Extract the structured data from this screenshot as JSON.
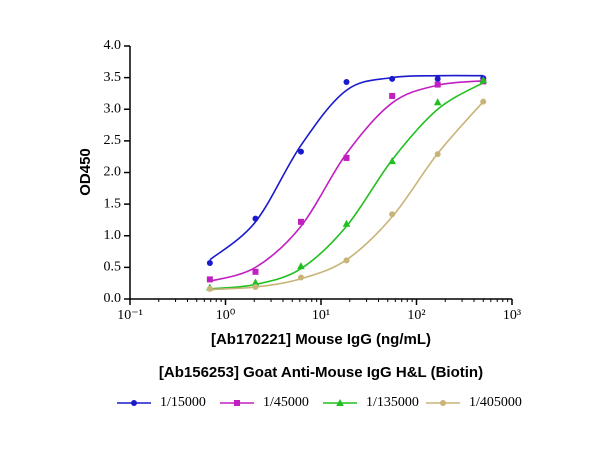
{
  "chart_data": {
    "type": "scatter",
    "xlabel": "[Ab170221] Mouse IgG (ng/mL)",
    "subtitle": "[Ab156253] Goat Anti-Mouse IgG H&L (Biotin)",
    "ylabel": "OD450",
    "xscale": "log",
    "xlim": [
      0.1,
      1000
    ],
    "xticks": [
      {
        "value": 0.1,
        "label": "10⁻¹"
      },
      {
        "value": 1,
        "label": "10⁰"
      },
      {
        "value": 10,
        "label": "10¹"
      },
      {
        "value": 100,
        "label": "10²"
      },
      {
        "value": 1000,
        "label": "10³"
      }
    ],
    "ylim": [
      0,
      4
    ],
    "yticks": [
      {
        "value": 0,
        "label": "0.0"
      },
      {
        "value": 0.5,
        "label": "0.5"
      },
      {
        "value": 1,
        "label": "1.0"
      },
      {
        "value": 1.5,
        "label": "1.5"
      },
      {
        "value": 2,
        "label": "2.0"
      },
      {
        "value": 2.5,
        "label": "2.5"
      },
      {
        "value": 3,
        "label": "3.0"
      },
      {
        "value": 3.5,
        "label": "3.5"
      },
      {
        "value": 4,
        "label": "4.0"
      }
    ],
    "legend": "bottom",
    "x": [
      0.686,
      2.06,
      6.17,
      18.5,
      55.6,
      166.7,
      500
    ],
    "series": [
      {
        "name": "1/15000",
        "color": "#1a1acc",
        "marker": "circle",
        "values": [
          0.57,
          1.27,
          2.33,
          3.43,
          3.48,
          3.48,
          3.49
        ],
        "fit_values": [
          0.62,
          1.22,
          2.43,
          3.3,
          3.5,
          3.53,
          3.53
        ]
      },
      {
        "name": "1/45000",
        "color": "#c020c0",
        "marker": "square",
        "values": [
          0.31,
          0.43,
          1.22,
          2.23,
          3.21,
          3.39,
          3.44
        ],
        "fit_values": [
          0.28,
          0.5,
          1.15,
          2.3,
          3.1,
          3.38,
          3.45
        ]
      },
      {
        "name": "1/135000",
        "color": "#20c020",
        "marker": "triangle",
        "values": [
          0.18,
          0.26,
          0.52,
          1.19,
          2.18,
          3.11,
          3.46
        ],
        "fit_values": [
          0.16,
          0.23,
          0.48,
          1.15,
          2.2,
          3.0,
          3.42
        ]
      },
      {
        "name": "1/405000",
        "color": "#c8b478",
        "marker": "circle",
        "values": [
          0.16,
          0.19,
          0.34,
          0.61,
          1.34,
          2.29,
          3.12
        ],
        "fit_values": [
          0.15,
          0.19,
          0.32,
          0.62,
          1.3,
          2.3,
          3.12
        ]
      }
    ]
  }
}
